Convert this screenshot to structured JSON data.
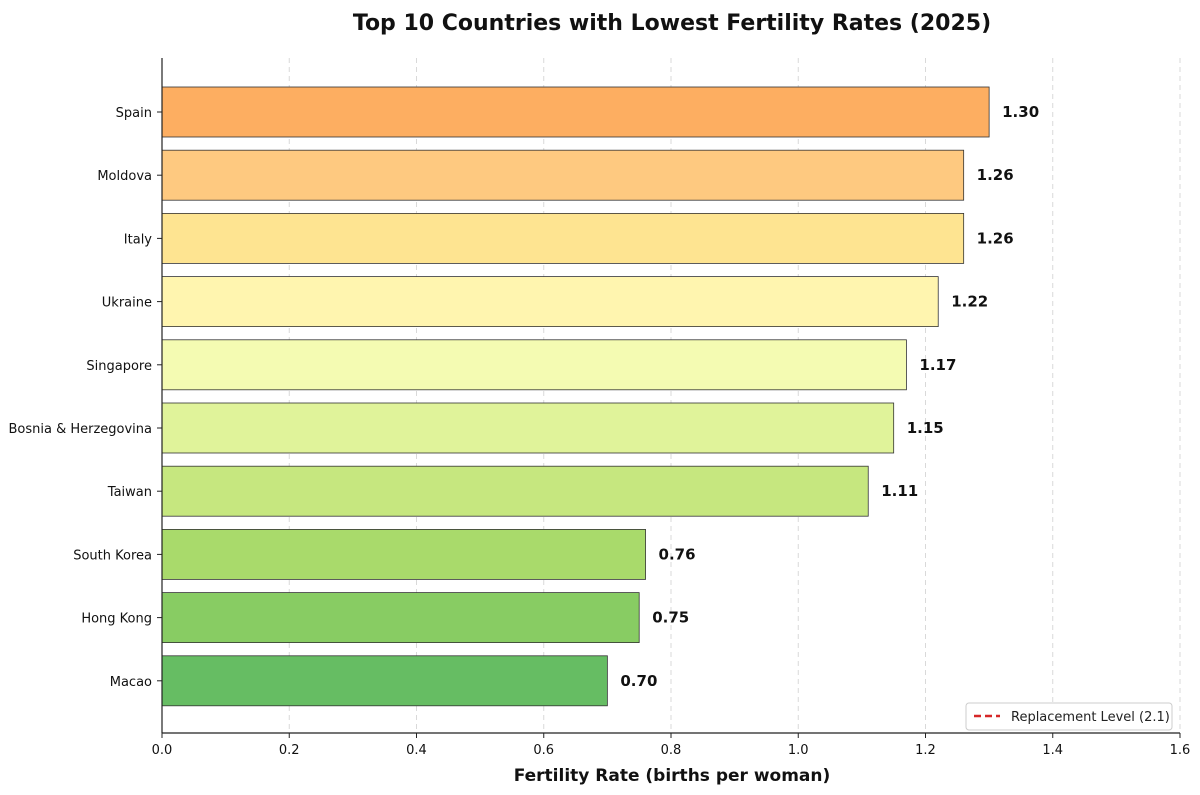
{
  "chart_data": {
    "type": "bar",
    "orientation": "horizontal",
    "title": "Top 10 Countries with Lowest Fertility Rates (2025)",
    "xlabel": "Fertility Rate (births per woman)",
    "ylabel": "",
    "xlim": [
      0,
      1.6
    ],
    "xticks": [
      "0.0",
      "0.2",
      "0.4",
      "0.6",
      "0.8",
      "1.0",
      "1.2",
      "1.4",
      "1.6"
    ],
    "grid": "vertical-dashed",
    "categories": [
      "Spain",
      "Moldova",
      "Italy",
      "Ukraine",
      "Singapore",
      "Bosnia & Herzegovina",
      "Taiwan",
      "South Korea",
      "Hong Kong",
      "Macao"
    ],
    "values": [
      1.3,
      1.26,
      1.26,
      1.22,
      1.17,
      1.15,
      1.11,
      0.76,
      0.75,
      0.7
    ],
    "value_labels": [
      "1.30",
      "1.26",
      "1.26",
      "1.22",
      "1.17",
      "1.15",
      "1.11",
      "0.76",
      "0.75",
      "0.70"
    ],
    "colors": [
      "#fdae61",
      "#fec980",
      "#fee491",
      "#fff5af",
      "#f4fbb2",
      "#e0f39a",
      "#c6e77f",
      "#a9da6b",
      "#88cc63",
      "#66bd63"
    ],
    "edge_color": "#333333",
    "legend": {
      "placement": "lower-right",
      "entries": [
        {
          "label": "Replacement Level (2.1)",
          "color": "#d62728",
          "style": "dashed"
        }
      ]
    },
    "reference_line": {
      "value": 2.1,
      "color": "#d62728",
      "style": "dashed"
    }
  }
}
